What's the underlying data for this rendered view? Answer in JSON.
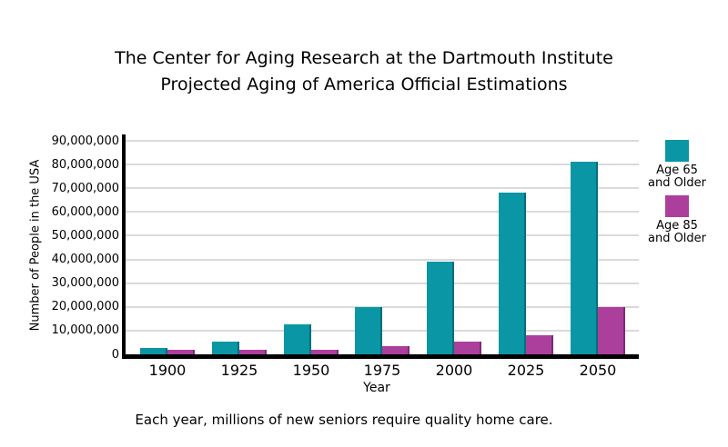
{
  "title": {
    "line1": "The Center for Aging Research at the Dartmouth Institute",
    "line2": "Projected Aging of America Official Estimations"
  },
  "caption": "Each year, millions of new seniors require quality home care.",
  "legend": [
    {
      "line1": "Age 65",
      "line2": "and Older",
      "color": "#0A96A4"
    },
    {
      "line1": "Age 85",
      "line2": "and Older",
      "color": "#AD3F9C"
    }
  ],
  "colors": {
    "age65_fill": "#0A96A4",
    "age65_edge": "#046E7A",
    "age85_fill": "#AD3F9C",
    "age85_edge": "#7C2B71",
    "gridline": "#DADADA",
    "axis": "#000000",
    "background": "#FFFFFF"
  },
  "chart_data": {
    "type": "bar",
    "title": "The Center for Aging Research at the Dartmouth Institute Projected Aging of America Official Estimations",
    "categories": [
      "1900",
      "1925",
      "1950",
      "1975",
      "2000",
      "2025",
      "2050"
    ],
    "series": [
      {
        "name": "Age 65 and Older",
        "color": "#0A96A4",
        "edge_color": "#046E7A",
        "values": [
          2500000,
          5500000,
          12500000,
          20000000,
          39000000,
          68000000,
          81000000
        ]
      },
      {
        "name": "Age 85 and Older",
        "color": "#AD3F9C",
        "edge_color": "#7C2B71",
        "values": [
          2000000,
          2000000,
          2000000,
          3500000,
          5500000,
          8000000,
          20000000
        ]
      }
    ],
    "xlabel": "Year",
    "ylabel": "Number of People in the USA",
    "ylim": [
      0,
      90000000
    ],
    "ytick_step": 10000000,
    "ytick_labels": [
      "90,000,000",
      "80,000,000",
      "70,000,000",
      "60,000,000",
      "50,000,000",
      "40,000,000",
      "30,000,000",
      "20,000,000",
      "10,000,000",
      "0"
    ],
    "grid": "horizontal",
    "legend_position": "right"
  }
}
